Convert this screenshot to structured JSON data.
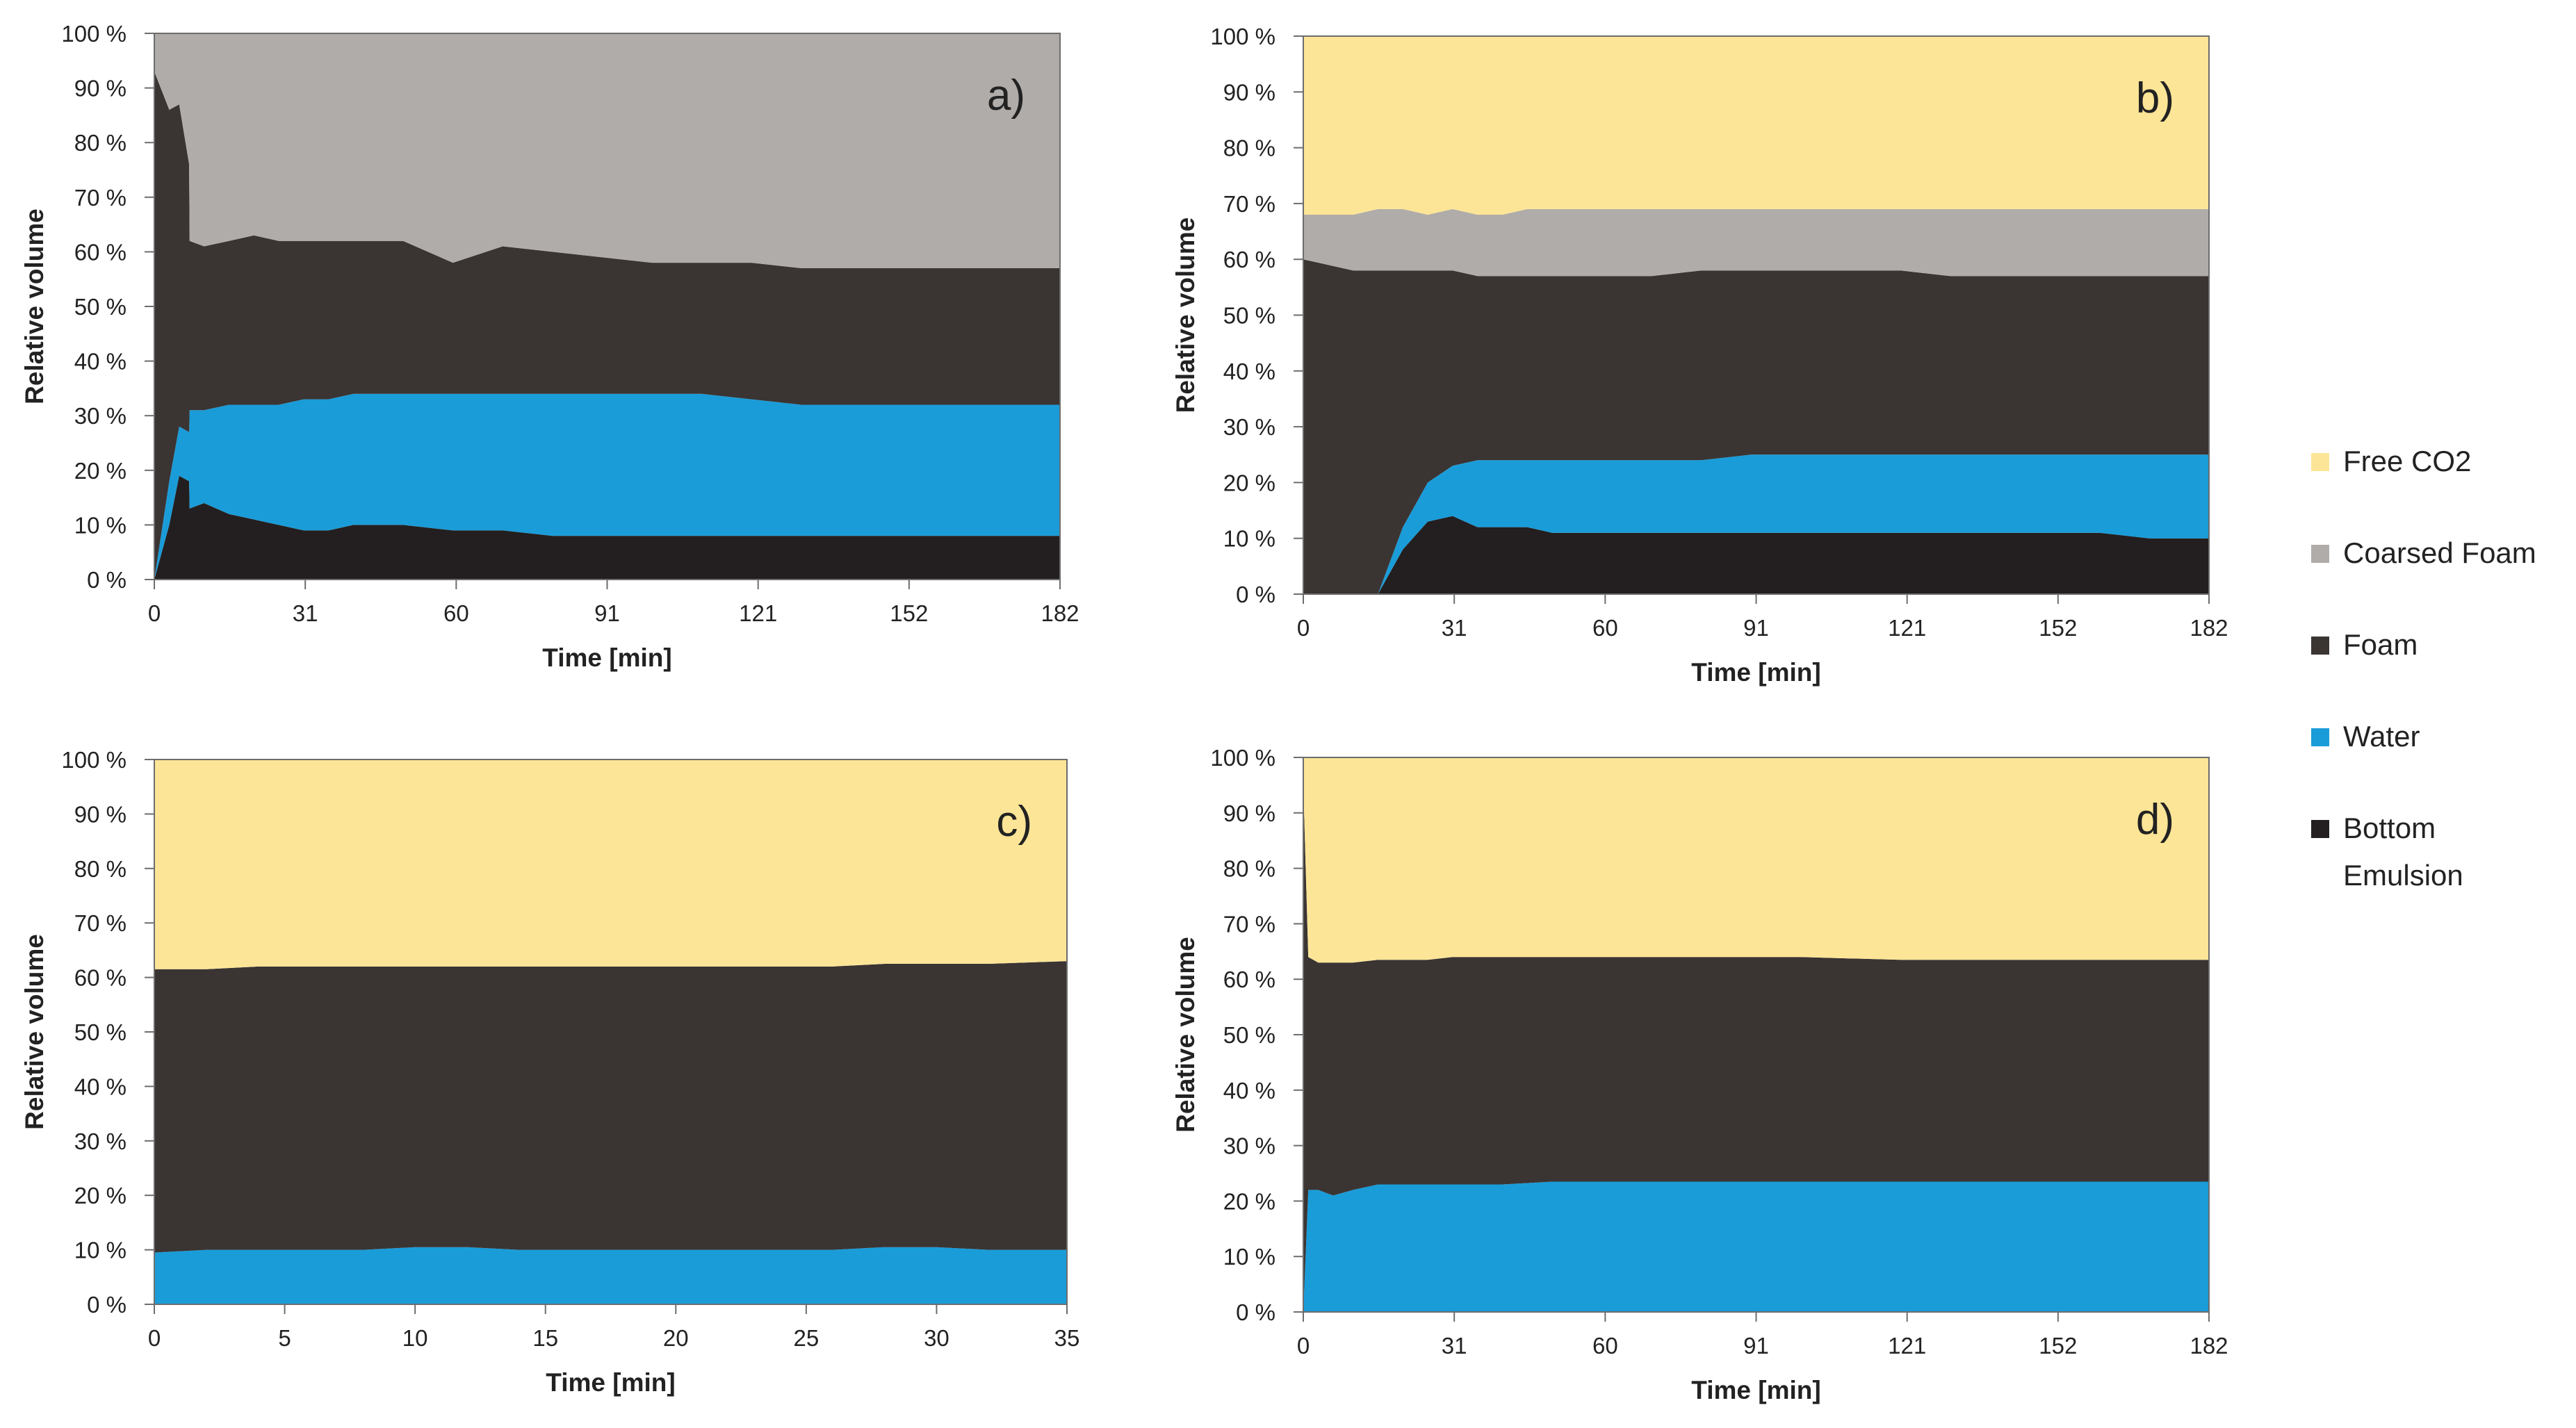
{
  "colors": {
    "free_co2": "#FCE597",
    "coarsed_foam": "#B0ACA9",
    "foam": "#3A3433",
    "water": "#1A9CD8",
    "bottom_emulsion": "#231F20"
  },
  "legend": {
    "items": [
      {
        "label": "Free CO2",
        "color": "#FCE597"
      },
      {
        "label": "Coarsed Foam",
        "color": "#B0ACA9"
      },
      {
        "label": "Foam",
        "color": "#3A3433"
      },
      {
        "label": "Water",
        "color": "#1A9CD8"
      },
      {
        "label": "Bottom Emulsion",
        "color": "#231F20"
      }
    ]
  },
  "chart_data": [
    {
      "type": "area",
      "stacked": true,
      "title": "a)",
      "xlabel": "Time [min]",
      "ylabel": "Relative volume",
      "xlim": [
        0,
        182
      ],
      "ylim": [
        0,
        100
      ],
      "xticks": [
        "0",
        "31",
        "60",
        "91",
        "121",
        "152",
        "182"
      ],
      "yticks": [
        "0 %",
        "10 %",
        "20 %",
        "30 %",
        "40 %",
        "50 %",
        "60 %",
        "70 %",
        "80 %",
        "90 %",
        "100 %"
      ],
      "x": [
        0,
        3,
        5,
        7,
        7.1,
        10,
        15,
        20,
        25,
        30,
        35,
        40,
        50,
        60,
        70,
        80,
        90,
        100,
        110,
        120,
        130,
        140,
        150,
        160,
        170,
        182
      ],
      "series": [
        {
          "name": "Bottom Emulsion",
          "values": [
            0,
            10,
            19,
            18,
            13,
            14,
            12,
            11,
            10,
            9,
            9,
            10,
            10,
            9,
            9,
            8,
            8,
            8,
            8,
            8,
            8,
            8,
            8,
            8,
            8,
            8
          ]
        },
        {
          "name": "Water",
          "values": [
            0,
            8,
            9,
            9,
            18,
            17,
            20,
            21,
            22,
            24,
            24,
            24,
            24,
            25,
            25,
            26,
            26,
            26,
            26,
            25,
            24,
            24,
            24,
            24,
            24,
            24
          ]
        },
        {
          "name": "Foam",
          "values": [
            93,
            68,
            59,
            49,
            31,
            30,
            30,
            31,
            30,
            29,
            29,
            28,
            28,
            24,
            27,
            26,
            25,
            24,
            24,
            25,
            25,
            25,
            25,
            25,
            25,
            25
          ]
        },
        {
          "name": "Coarsed Foam",
          "values": [
            7,
            14,
            13,
            24,
            38,
            39,
            38,
            37,
            38,
            38,
            38,
            38,
            38,
            42,
            39,
            40,
            41,
            42,
            42,
            42,
            43,
            43,
            43,
            43,
            43,
            43
          ]
        }
      ]
    },
    {
      "type": "area",
      "stacked": true,
      "title": "b)",
      "xlabel": "Time [min]",
      "ylabel": "Relative volume",
      "xlim": [
        0,
        182
      ],
      "ylim": [
        0,
        100
      ],
      "xticks": [
        "0",
        "31",
        "60",
        "91",
        "121",
        "152",
        "182"
      ],
      "yticks": [
        "0 %",
        "10 %",
        "20 %",
        "30 %",
        "40 %",
        "50 %",
        "60 %",
        "70 %",
        "80 %",
        "90 %",
        "100 %"
      ],
      "x": [
        0,
        5,
        10,
        15,
        20,
        25,
        30,
        35,
        40,
        45,
        50,
        60,
        70,
        80,
        90,
        100,
        110,
        120,
        130,
        140,
        150,
        160,
        170,
        182
      ],
      "series": [
        {
          "name": "Bottom Emulsion",
          "values": [
            0,
            0,
            0,
            0,
            8,
            13,
            14,
            12,
            12,
            12,
            11,
            11,
            11,
            11,
            11,
            11,
            11,
            11,
            11,
            11,
            11,
            11,
            10,
            10
          ]
        },
        {
          "name": "Water",
          "values": [
            0,
            0,
            0,
            0,
            4,
            7,
            9,
            12,
            12,
            12,
            13,
            13,
            13,
            13,
            14,
            14,
            14,
            14,
            14,
            14,
            14,
            14,
            15,
            15
          ]
        },
        {
          "name": "Foam",
          "values": [
            60,
            59,
            58,
            58,
            46,
            38,
            35,
            33,
            33,
            33,
            33,
            33,
            33,
            34,
            33,
            33,
            33,
            33,
            32,
            32,
            32,
            32,
            32,
            32
          ]
        },
        {
          "name": "Coarsed Foam",
          "values": [
            8,
            9,
            10,
            11,
            11,
            10,
            11,
            11,
            11,
            12,
            12,
            12,
            12,
            11,
            11,
            11,
            11,
            11,
            12,
            12,
            12,
            12,
            12,
            12
          ]
        },
        {
          "name": "Free CO2",
          "values": [
            32,
            32,
            32,
            31,
            31,
            32,
            31,
            32,
            32,
            31,
            31,
            31,
            31,
            31,
            31,
            31,
            31,
            31,
            31,
            31,
            31,
            31,
            31,
            31
          ]
        }
      ]
    },
    {
      "type": "area",
      "stacked": true,
      "title": "c)",
      "xlabel": "Time [min]",
      "ylabel": "Relative volume",
      "xlim": [
        0,
        35
      ],
      "ylim": [
        0,
        100
      ],
      "xticks": [
        "0",
        "5",
        "10",
        "15",
        "20",
        "25",
        "30",
        "35"
      ],
      "yticks": [
        "0 %",
        "10 %",
        "20 %",
        "30 %",
        "40 %",
        "50 %",
        "60 %",
        "70 %",
        "80 %",
        "90 %",
        "100 %"
      ],
      "x": [
        0,
        2,
        4,
        6,
        8,
        10,
        12,
        14,
        16,
        18,
        20,
        22,
        24,
        26,
        28,
        30,
        32,
        35
      ],
      "series": [
        {
          "name": "Water",
          "values": [
            9.5,
            10,
            10,
            10,
            10,
            10.5,
            10.5,
            10,
            10,
            10,
            10,
            10,
            10,
            10,
            10.5,
            10.5,
            10,
            10
          ]
        },
        {
          "name": "Foam",
          "values": [
            52,
            51.5,
            52,
            52,
            52,
            51.5,
            51.5,
            52,
            52,
            52,
            52,
            52,
            52,
            52,
            52,
            52,
            52.5,
            53
          ]
        },
        {
          "name": "Free CO2",
          "values": [
            38.5,
            38.5,
            38,
            38,
            38,
            38,
            38,
            38,
            38,
            38,
            38,
            38,
            38,
            38,
            37.5,
            37.5,
            37.5,
            37
          ]
        }
      ]
    },
    {
      "type": "area",
      "stacked": true,
      "title": "d)",
      "xlabel": "Time [min]",
      "ylabel": "Relative volume",
      "xlim": [
        0,
        182
      ],
      "ylim": [
        0,
        100
      ],
      "xticks": [
        "0",
        "31",
        "60",
        "91",
        "121",
        "152",
        "182"
      ],
      "yticks": [
        "0 %",
        "10 %",
        "20 %",
        "30 %",
        "40 %",
        "50 %",
        "60 %",
        "70 %",
        "80 %",
        "90 %",
        "100 %"
      ],
      "x": [
        0,
        1,
        3,
        6,
        10,
        15,
        20,
        25,
        30,
        40,
        50,
        60,
        80,
        100,
        120,
        140,
        160,
        182
      ],
      "series": [
        {
          "name": "Water",
          "values": [
            0,
            22,
            22,
            21,
            22,
            23,
            23,
            23,
            23,
            23,
            23.5,
            23.5,
            23.5,
            23.5,
            23.5,
            23.5,
            23.5,
            23.5
          ]
        },
        {
          "name": "Foam",
          "values": [
            95,
            42,
            41,
            42,
            41,
            40.5,
            40.5,
            40.5,
            41,
            41,
            40.5,
            40.5,
            40.5,
            40.5,
            40,
            40,
            40,
            40
          ]
        },
        {
          "name": "Free CO2",
          "values": [
            5,
            36,
            37,
            37,
            37,
            36.5,
            36.5,
            36.5,
            36,
            36,
            36,
            36,
            36,
            36,
            36.5,
            36.5,
            36.5,
            36.5
          ]
        }
      ]
    }
  ]
}
